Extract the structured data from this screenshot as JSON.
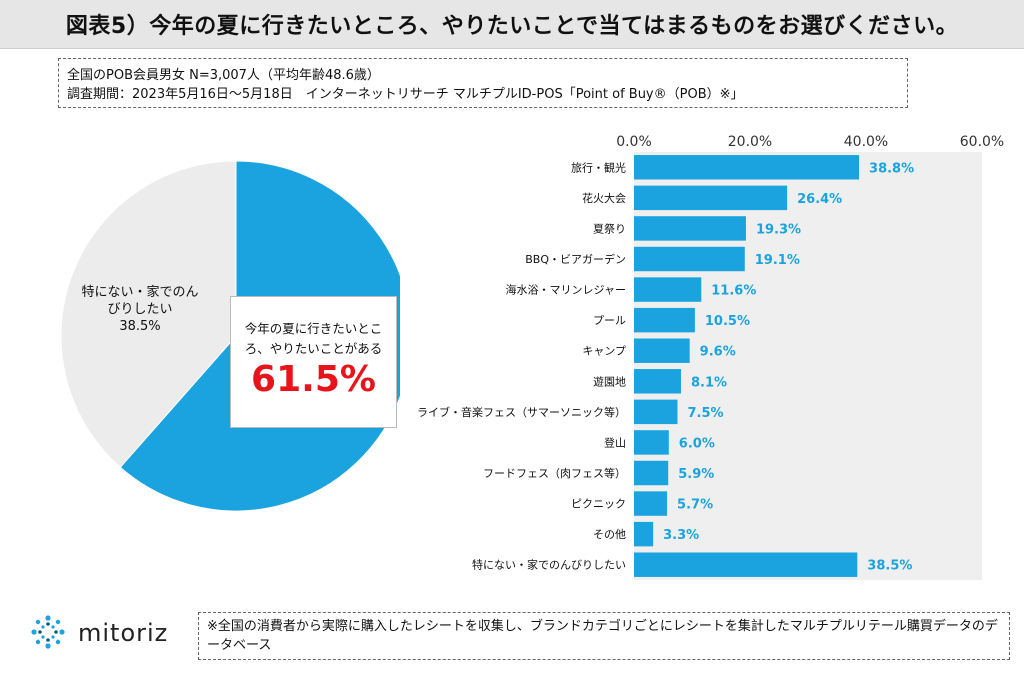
{
  "title": "図表5）今年の夏に行きたいところ、やりたいことで当てはまるものをお選びください。",
  "survey_info": {
    "line1": "全国のPOB会員男女 N=3,007人（平均年齢48.6歳）",
    "line2": "調査期間：2023年5月16日～5月18日　インターネットリサーチ マルチプルID-POS「Point of Buy®（POB）※」"
  },
  "pie": {
    "callout_caption": "今年の夏に行きたいところ、やりたいことがある",
    "callout_value": "61.5%",
    "other_label": "特にない・家でのんびりしたい",
    "other_value": "38.5%"
  },
  "colors": {
    "accent": "#1aa3df",
    "callout_red": "#e8141b",
    "pie_gray": "#ececec",
    "plot_bg": "#efefef"
  },
  "chart_data": [
    {
      "type": "pie",
      "categories": [
        "今年の夏に行きたいところ、やりたいことがある",
        "特にない・家でのんびりしたい"
      ],
      "values": [
        61.5,
        38.5
      ],
      "unit": "%"
    },
    {
      "type": "bar",
      "orientation": "horizontal",
      "categories": [
        "旅行・観光",
        "花火大会",
        "夏祭り",
        "BBQ・ビアガーデン",
        "海水浴・マリンレジャー",
        "プール",
        "キャンプ",
        "遊園地",
        "ライブ・音楽フェス（サマーソニック等）",
        "登山",
        "フードフェス（肉フェス等）",
        "ピクニック",
        "その他",
        "特にない・家でのんびりしたい"
      ],
      "values": [
        38.8,
        26.4,
        19.3,
        19.1,
        11.6,
        10.5,
        9.6,
        8.1,
        7.5,
        6.0,
        5.9,
        5.7,
        3.3,
        38.5
      ],
      "value_labels": [
        "38.8%",
        "26.4%",
        "19.3%",
        "19.1%",
        "11.6%",
        "10.5%",
        "9.6%",
        "8.1%",
        "7.5%",
        "6.0%",
        "5.9%",
        "5.7%",
        "3.3%",
        "38.5%"
      ],
      "xlim": [
        0,
        60
      ],
      "ticks": [
        0,
        20,
        40,
        60
      ],
      "tick_labels": [
        "0.0%",
        "20.0%",
        "40.0%",
        "60.0%"
      ],
      "axis_position": "top",
      "grid": false
    }
  ],
  "footer": {
    "logo_text": "mitoriz",
    "note": "※全国の消費者から実際に購入したレシートを収集し、ブランドカテゴリごとにレシートを集計したマルチプルリテール購買データのデータベース"
  }
}
